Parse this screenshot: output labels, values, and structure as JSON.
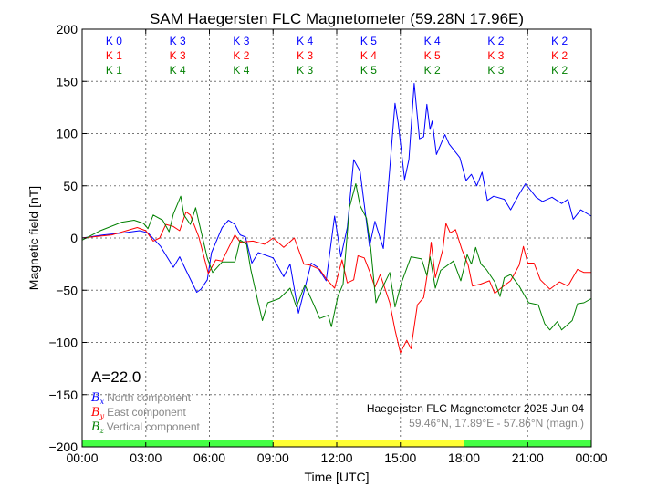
{
  "chart_data": {
    "type": "line",
    "title": "SAM Haegersten FLC Magnetometer (59.28N 17.96E)",
    "xlabel": "Time [UTC]",
    "ylabel": "Magnetic field [nT]",
    "xlim": [
      0,
      24
    ],
    "ylim": [
      -200,
      200
    ],
    "grid": true,
    "xticks": [
      0,
      3,
      6,
      9,
      12,
      15,
      18,
      21,
      24
    ],
    "xtick_labels": [
      "00:00",
      "03:00",
      "06:00",
      "09:00",
      "12:00",
      "15:00",
      "18:00",
      "21:00",
      "00:00"
    ],
    "yticks": [
      200,
      150,
      100,
      50,
      0,
      -50,
      -100,
      -150,
      -200
    ],
    "ytick_labels": [
      "200",
      "150",
      "100",
      "50",
      "0",
      "−50",
      "−100",
      "−150",
      "−200"
    ],
    "k_index": {
      "rows": [
        {
          "color": "#0000ff",
          "values": [
            "K 0",
            "K 3",
            "K 3",
            "K 4",
            "K 5",
            "K 4",
            "K 2",
            "K 2"
          ]
        },
        {
          "color": "#ff0000",
          "values": [
            "K 1",
            "K 3",
            "K 2",
            "K 3",
            "K 4",
            "K 5",
            "K 3",
            "K 2"
          ]
        },
        {
          "color": "#008000",
          "values": [
            "K 1",
            "K 4",
            "K 4",
            "K 3",
            "K 5",
            "K 2",
            "K 3",
            "K 2"
          ]
        }
      ]
    },
    "activity_index": "A=22.0",
    "daylight_bar": [
      {
        "from": 0,
        "to": 9,
        "color": "#44ff44"
      },
      {
        "from": 9,
        "to": 18,
        "color": "#ffff33"
      },
      {
        "from": 18,
        "to": 24,
        "color": "#44ff44"
      }
    ],
    "legend": {
      "placement": "bottom-left",
      "items": [
        {
          "symbol": "B",
          "sub": "x",
          "label": "North component",
          "color": "#0000ff"
        },
        {
          "symbol": "B",
          "sub": "y",
          "label": "East component",
          "color": "#ff0000"
        },
        {
          "symbol": "B",
          "sub": "z",
          "label": "Vertical component",
          "color": "#008000"
        }
      ]
    },
    "station_caption": "Haegersten FLC Magnetometer 2025 Jun 04",
    "station_coords": "59.46°N, 17.89°E - 57.86°N (magn.)",
    "series": [
      {
        "name": "Bx North component",
        "color": "#0000ff",
        "points": [
          [
            0,
            0
          ],
          [
            1,
            3
          ],
          [
            2,
            5
          ],
          [
            2.7,
            7
          ],
          [
            3.1,
            5
          ],
          [
            3.7,
            -8
          ],
          [
            4.3,
            -28
          ],
          [
            4.6,
            -18
          ],
          [
            4.9,
            -31
          ],
          [
            5.4,
            -52
          ],
          [
            5.6,
            -49
          ],
          [
            5.9,
            -40
          ],
          [
            6.1,
            -14
          ],
          [
            6.6,
            10
          ],
          [
            6.9,
            17
          ],
          [
            7.2,
            13
          ],
          [
            7.45,
            3
          ],
          [
            7.7,
            1
          ],
          [
            8.0,
            -24
          ],
          [
            8.3,
            -14
          ],
          [
            9.0,
            -19
          ],
          [
            9.5,
            -37
          ],
          [
            9.8,
            -25
          ],
          [
            10.2,
            -72
          ],
          [
            10.6,
            -40
          ],
          [
            10.8,
            -24
          ],
          [
            11.1,
            -28
          ],
          [
            11.5,
            -41
          ],
          [
            11.9,
            21
          ],
          [
            12.2,
            -18
          ],
          [
            12.5,
            10
          ],
          [
            12.8,
            75
          ],
          [
            13.1,
            64
          ],
          [
            13.55,
            -8
          ],
          [
            13.8,
            16
          ],
          [
            14.2,
            -10
          ],
          [
            14.5,
            66
          ],
          [
            14.75,
            129
          ],
          [
            14.9,
            110
          ],
          [
            15.2,
            56
          ],
          [
            15.4,
            75
          ],
          [
            15.65,
            148
          ],
          [
            15.9,
            95
          ],
          [
            16.1,
            97
          ],
          [
            16.25,
            128
          ],
          [
            16.4,
            104
          ],
          [
            16.5,
            112
          ],
          [
            16.7,
            80
          ],
          [
            17.1,
            99
          ],
          [
            17.3,
            90
          ],
          [
            17.8,
            77
          ],
          [
            18.1,
            55
          ],
          [
            18.35,
            61
          ],
          [
            18.6,
            50
          ],
          [
            18.85,
            63
          ],
          [
            19.1,
            36
          ],
          [
            19.4,
            40
          ],
          [
            19.9,
            37
          ],
          [
            20.2,
            27
          ],
          [
            20.6,
            42
          ],
          [
            20.9,
            52
          ],
          [
            21.4,
            39
          ],
          [
            21.7,
            35
          ],
          [
            22.15,
            39
          ],
          [
            22.6,
            33
          ],
          [
            22.9,
            37
          ],
          [
            23.15,
            18
          ],
          [
            23.5,
            27
          ],
          [
            24,
            21
          ]
        ]
      },
      {
        "name": "By East component",
        "color": "#ff0000",
        "points": [
          [
            0,
            0
          ],
          [
            1.4,
            3
          ],
          [
            2.6,
            10
          ],
          [
            3.0,
            7
          ],
          [
            3.35,
            -3
          ],
          [
            3.65,
            0
          ],
          [
            3.95,
            13
          ],
          [
            4.3,
            11
          ],
          [
            4.6,
            7
          ],
          [
            4.9,
            25
          ],
          [
            5.1,
            22
          ],
          [
            5.5,
            1
          ],
          [
            5.95,
            -34
          ],
          [
            6.3,
            -21
          ],
          [
            6.6,
            -22
          ],
          [
            7.2,
            3
          ],
          [
            7.45,
            -4
          ],
          [
            8.05,
            -3
          ],
          [
            8.6,
            -6
          ],
          [
            9.0,
            0
          ],
          [
            9.5,
            -9
          ],
          [
            10,
            0
          ],
          [
            10.45,
            -25
          ],
          [
            10.75,
            -26
          ],
          [
            11.2,
            -30
          ],
          [
            11.5,
            -39
          ],
          [
            11.9,
            -48
          ],
          [
            12.25,
            -21
          ],
          [
            12.5,
            -43
          ],
          [
            12.8,
            -40
          ],
          [
            13.0,
            -17
          ],
          [
            13.3,
            -19
          ],
          [
            13.55,
            -32
          ],
          [
            13.8,
            -47
          ],
          [
            14.05,
            -35
          ],
          [
            14.5,
            -62
          ],
          [
            14.75,
            -88
          ],
          [
            15.0,
            -110
          ],
          [
            15.3,
            -98
          ],
          [
            15.5,
            -106
          ],
          [
            15.8,
            -64
          ],
          [
            16.1,
            -57
          ],
          [
            16.35,
            -24
          ],
          [
            16.45,
            -4
          ],
          [
            16.65,
            -38
          ],
          [
            17.0,
            -11
          ],
          [
            17.15,
            14
          ],
          [
            17.35,
            5
          ],
          [
            17.6,
            8
          ],
          [
            17.9,
            -11
          ],
          [
            18.2,
            -26
          ],
          [
            18.4,
            -46
          ],
          [
            18.8,
            -44
          ],
          [
            19.2,
            -41
          ],
          [
            19.45,
            -53
          ],
          [
            19.8,
            -47
          ],
          [
            20.2,
            -41
          ],
          [
            20.6,
            -26
          ],
          [
            20.8,
            -8
          ],
          [
            21.0,
            -24
          ],
          [
            21.3,
            -24
          ],
          [
            21.6,
            -40
          ],
          [
            22.05,
            -49
          ],
          [
            22.5,
            -42
          ],
          [
            22.9,
            -46
          ],
          [
            23.35,
            -30
          ],
          [
            23.65,
            -33
          ],
          [
            24,
            -33
          ]
        ]
      },
      {
        "name": "Bz Vertical component",
        "color": "#008000",
        "points": [
          [
            0,
            -2
          ],
          [
            0.85,
            7
          ],
          [
            1.85,
            15
          ],
          [
            2.45,
            17
          ],
          [
            2.9,
            14
          ],
          [
            3.1,
            9
          ],
          [
            3.35,
            22
          ],
          [
            3.8,
            17
          ],
          [
            4.1,
            6
          ],
          [
            4.3,
            23
          ],
          [
            4.65,
            40
          ],
          [
            4.8,
            22
          ],
          [
            5.1,
            13
          ],
          [
            5.35,
            29
          ],
          [
            5.6,
            7
          ],
          [
            5.9,
            -19
          ],
          [
            6.15,
            -33
          ],
          [
            6.6,
            -23
          ],
          [
            7.2,
            -23
          ],
          [
            7.45,
            -2
          ],
          [
            7.75,
            -6
          ],
          [
            7.95,
            -30
          ],
          [
            8.3,
            -62
          ],
          [
            8.5,
            -79
          ],
          [
            8.75,
            -62
          ],
          [
            9.3,
            -58
          ],
          [
            9.8,
            -48
          ],
          [
            10.1,
            -66
          ],
          [
            10.5,
            -45
          ],
          [
            10.9,
            -63
          ],
          [
            11.2,
            -77
          ],
          [
            11.6,
            -74
          ],
          [
            11.75,
            -85
          ],
          [
            12.05,
            -56
          ],
          [
            12.3,
            -44
          ],
          [
            12.6,
            29
          ],
          [
            12.9,
            52
          ],
          [
            13.1,
            31
          ],
          [
            13.4,
            19
          ],
          [
            13.6,
            -9
          ],
          [
            13.85,
            -62
          ],
          [
            14.1,
            -50
          ],
          [
            14.5,
            -33
          ],
          [
            14.75,
            -66
          ],
          [
            15.05,
            -43
          ],
          [
            15.5,
            -18
          ],
          [
            16,
            -20
          ],
          [
            16.25,
            -36
          ],
          [
            16.4,
            -18
          ],
          [
            16.65,
            -48
          ],
          [
            16.9,
            -31
          ],
          [
            17.5,
            -22
          ],
          [
            17.85,
            -41
          ],
          [
            18.15,
            -16
          ],
          [
            18.35,
            -25
          ],
          [
            18.55,
            -9
          ],
          [
            18.8,
            -25
          ],
          [
            19.05,
            -30
          ],
          [
            19.45,
            -42
          ],
          [
            19.7,
            -56
          ],
          [
            19.9,
            -38
          ],
          [
            20.2,
            -35
          ],
          [
            20.6,
            -46
          ],
          [
            21.05,
            -62
          ],
          [
            21.5,
            -64
          ],
          [
            21.8,
            -82
          ],
          [
            22.05,
            -88
          ],
          [
            22.4,
            -80
          ],
          [
            22.6,
            -88
          ],
          [
            23.1,
            -79
          ],
          [
            23.35,
            -63
          ],
          [
            23.65,
            -62
          ],
          [
            24,
            -58
          ]
        ]
      }
    ]
  }
}
